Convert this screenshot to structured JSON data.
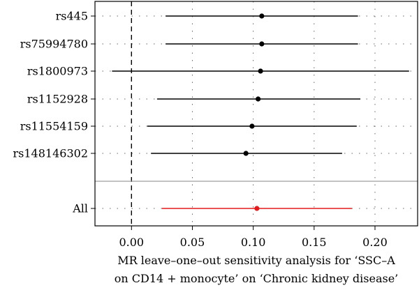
{
  "chart_data": {
    "type": "forest",
    "xlabel_lines": [
      "MR leave–one–out sensitivity analysis for ‘SSC–A",
      "on CD14 + monocyte’ on ‘Chronic kidney disease’"
    ],
    "xlim": [
      -0.03,
      0.235
    ],
    "xticks": [
      0.0,
      0.05,
      0.1,
      0.15,
      0.2
    ],
    "xtick_labels": [
      "0.00",
      "0.05",
      "0.10",
      "0.15",
      "0.20"
    ],
    "reference_line_x": 0.0,
    "grid": "dotted",
    "rows": [
      {
        "label": "rs445",
        "estimate": 0.107,
        "lower": 0.028,
        "upper": 0.186
      },
      {
        "label": "rs75994780",
        "estimate": 0.107,
        "lower": 0.028,
        "upper": 0.186
      },
      {
        "label": "rs1800973",
        "estimate": 0.106,
        "lower": -0.016,
        "upper": 0.228
      },
      {
        "label": "rs1152928",
        "estimate": 0.104,
        "lower": 0.021,
        "upper": 0.188
      },
      {
        "label": "rs11554159",
        "estimate": 0.099,
        "lower": 0.013,
        "upper": 0.185
      },
      {
        "label": "rs148146302",
        "estimate": 0.094,
        "lower": 0.016,
        "upper": 0.173
      }
    ],
    "overall": {
      "label": "All",
      "estimate": 0.103,
      "lower": 0.025,
      "upper": 0.181
    },
    "colors": {
      "rows": "#000000",
      "overall": "#e41a1c",
      "separator": "#9e9e9e"
    }
  }
}
